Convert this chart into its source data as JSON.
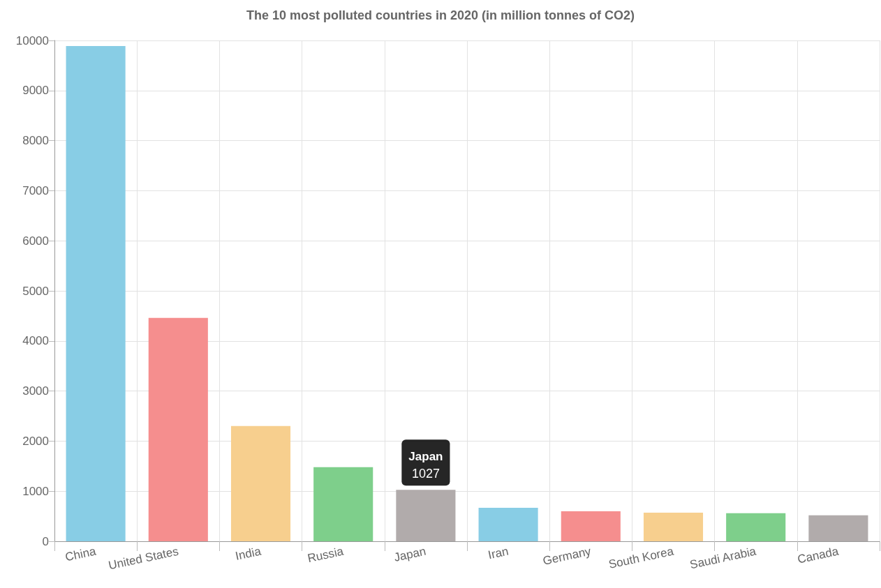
{
  "chart_data": {
    "type": "bar",
    "title": "The 10 most polluted countries in 2020 (in million tonnes of CO2)",
    "categories": [
      "China",
      "United States",
      "India",
      "Russia",
      "Japan",
      "Iran",
      "Germany",
      "South Korea",
      "Saudi Arabia",
      "Canada"
    ],
    "values": [
      9890,
      4460,
      2300,
      1480,
      1027,
      670,
      600,
      570,
      560,
      520
    ],
    "colors": [
      "#88cde5",
      "#f58e8e",
      "#f7cf8e",
      "#7ecf8b",
      "#b1abab",
      "#88cde5",
      "#f58e8e",
      "#f7cf8e",
      "#7ecf8b",
      "#b1abab"
    ],
    "value_labels": [
      null,
      null,
      null,
      null,
      "1027",
      null,
      null,
      null,
      null,
      null
    ],
    "ylim": [
      0,
      10000
    ],
    "yticks": [
      0,
      1000,
      2000,
      3000,
      4000,
      5000,
      6000,
      7000,
      8000,
      9000,
      10000
    ],
    "grid": true
  }
}
